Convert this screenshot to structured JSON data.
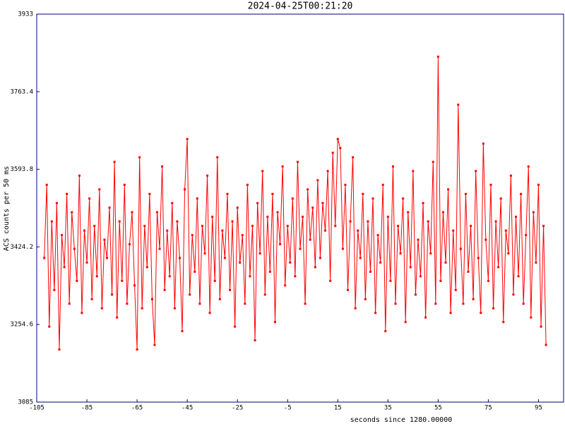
{
  "chart_data": {
    "type": "line",
    "title": "2024-04-25T00:21:20",
    "ylabel": "ACS counts per 50 ms",
    "xlabel": "seconds since 1280.00000",
    "xlim": [
      -105,
      105
    ],
    "ylim": [
      3085,
      3933
    ],
    "xticks": [
      -105,
      -85,
      -65,
      -45,
      -25,
      -5,
      15,
      35,
      55,
      75,
      95
    ],
    "yticks": [
      3085,
      3254.6,
      3424.2,
      3593.8,
      3763.4,
      3933
    ],
    "x": [
      -102,
      -101,
      -100,
      -99,
      -98,
      -97,
      -96,
      -95,
      -94,
      -93,
      -92,
      -91,
      -90,
      -89,
      -88,
      -87,
      -86,
      -85,
      -84,
      -83,
      -82,
      -81,
      -80,
      -79,
      -78,
      -77,
      -76,
      -75,
      -74,
      -73,
      -72,
      -71,
      -70,
      -69,
      -68,
      -67,
      -66,
      -65,
      -64,
      -63,
      -62,
      -61,
      -60,
      -59,
      -58,
      -57,
      -56,
      -55,
      -54,
      -53,
      -52,
      -51,
      -50,
      -49,
      -48,
      -47,
      -46,
      -45,
      -44,
      -43,
      -42,
      -41,
      -40,
      -39,
      -38,
      -37,
      -36,
      -35,
      -34,
      -33,
      -32,
      -31,
      -30,
      -29,
      -28,
      -27,
      -26,
      -25,
      -24,
      -23,
      -22,
      -21,
      -20,
      -19,
      -18,
      -17,
      -16,
      -15,
      -14,
      -13,
      -12,
      -11,
      -10,
      -9,
      -8,
      -7,
      -6,
      -5,
      -4,
      -3,
      -2,
      -1,
      0,
      1,
      2,
      3,
      4,
      5,
      6,
      7,
      8,
      9,
      10,
      11,
      12,
      13,
      14,
      15,
      16,
      17,
      18,
      19,
      20,
      21,
      22,
      23,
      24,
      25,
      26,
      27,
      28,
      29,
      30,
      31,
      32,
      33,
      34,
      35,
      36,
      37,
      38,
      39,
      40,
      41,
      42,
      43,
      44,
      45,
      46,
      47,
      48,
      49,
      50,
      51,
      52,
      53,
      54,
      55,
      56,
      57,
      58,
      59,
      60,
      61,
      62,
      63,
      64,
      65,
      66,
      67,
      68,
      69,
      70,
      71,
      72,
      73,
      74,
      75,
      76,
      77,
      78,
      79,
      80,
      81,
      82,
      83,
      84,
      85,
      86,
      87,
      88,
      89,
      90,
      91,
      92,
      93,
      94,
      95,
      96,
      97,
      98
    ],
    "series": [
      {
        "color": "#ff0000",
        "values": [
          3400,
          3560,
          3250,
          3480,
          3330,
          3520,
          3200,
          3450,
          3380,
          3540,
          3300,
          3500,
          3420,
          3350,
          3580,
          3280,
          3460,
          3390,
          3530,
          3310,
          3470,
          3360,
          3550,
          3290,
          3440,
          3400,
          3510,
          3320,
          3610,
          3270,
          3480,
          3350,
          3560,
          3300,
          3430,
          3500,
          3340,
          3200,
          3620,
          3290,
          3470,
          3380,
          3540,
          3310,
          3210,
          3500,
          3420,
          3600,
          3330,
          3460,
          3360,
          3520,
          3290,
          3480,
          3400,
          3240,
          3550,
          3660,
          3320,
          3450,
          3370,
          3530,
          3300,
          3470,
          3410,
          3580,
          3280,
          3490,
          3350,
          3620,
          3310,
          3460,
          3400,
          3540,
          3330,
          3480,
          3250,
          3510,
          3390,
          3450,
          3300,
          3560,
          3360,
          3470,
          3220,
          3520,
          3410,
          3590,
          3320,
          3490,
          3370,
          3540,
          3260,
          3500,
          3430,
          3600,
          3340,
          3470,
          3390,
          3530,
          3360,
          3610,
          3420,
          3490,
          3300,
          3550,
          3440,
          3510,
          3380,
          3570,
          3400,
          3520,
          3460,
          3590,
          3350,
          3630,
          3470,
          3660,
          3640,
          3420,
          3560,
          3330,
          3480,
          3620,
          3290,
          3460,
          3400,
          3540,
          3310,
          3480,
          3370,
          3530,
          3280,
          3450,
          3390,
          3560,
          3240,
          3490,
          3350,
          3600,
          3300,
          3470,
          3410,
          3530,
          3260,
          3500,
          3380,
          3590,
          3320,
          3440,
          3360,
          3520,
          3270,
          3480,
          3410,
          3610,
          3300,
          3840,
          3350,
          3500,
          3390,
          3550,
          3280,
          3460,
          3330,
          3735,
          3420,
          3300,
          3540,
          3370,
          3470,
          3310,
          3590,
          3400,
          3280,
          3650,
          3440,
          3350,
          3560,
          3290,
          3480,
          3380,
          3530,
          3260,
          3460,
          3410,
          3580,
          3320,
          3490,
          3360,
          3540,
          3300,
          3450,
          3600,
          3270,
          3500,
          3390,
          3560,
          3250,
          3470,
          3210
        ]
      }
    ]
  }
}
